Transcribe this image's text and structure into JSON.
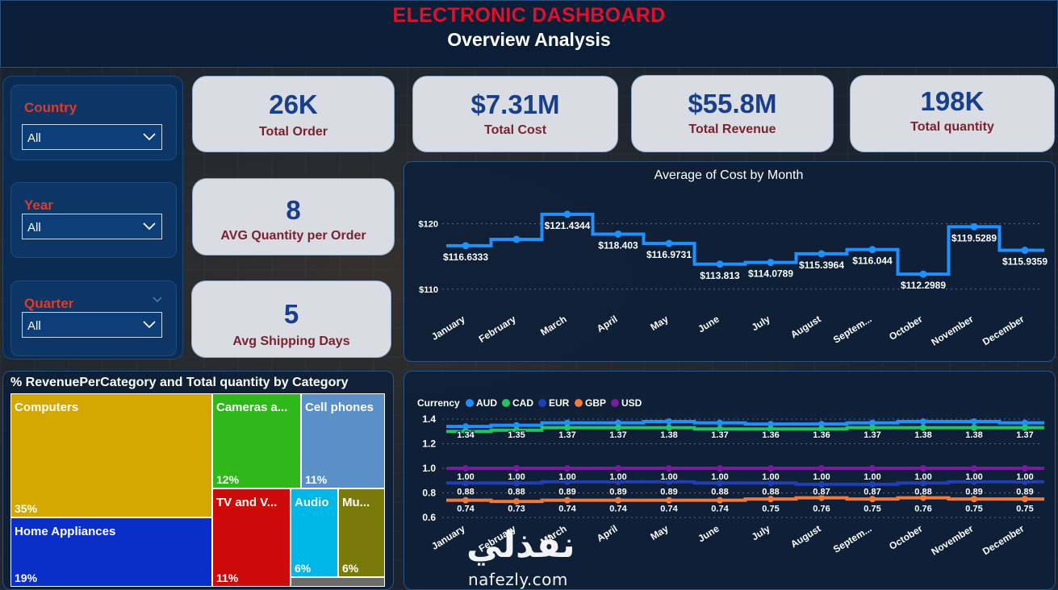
{
  "header": {
    "title": "ELECTRONIC DASHBOARD",
    "subtitle": "Overview Analysis"
  },
  "slicers": [
    {
      "label": "Country",
      "value": "All"
    },
    {
      "label": "Year",
      "value": "All"
    },
    {
      "label": "Quarter",
      "value": "All"
    }
  ],
  "kpis": [
    {
      "value": "26K",
      "label": "Total Order"
    },
    {
      "value": "$7.31M",
      "label": "Total Cost"
    },
    {
      "value": "$55.8M",
      "label": "Total Revenue"
    },
    {
      "value": "198K",
      "label": "Total quantity"
    },
    {
      "value": "8",
      "label": "AVG Quantity per Order"
    },
    {
      "value": "5",
      "label": "Avg Shipping Days"
    }
  ],
  "colors": {
    "AUD": "#1e90ff",
    "CAD": "#22c55e",
    "EUR": "#1f3fb4",
    "GBP": "#f07a3a",
    "USD": "#7a1aa0",
    "cost_line": "#1e90ff",
    "title_red": "#e0102a"
  },
  "chart_data": [
    {
      "type": "line",
      "title": "Average of Cost by Month",
      "categories": [
        "January",
        "February",
        "March",
        "April",
        "May",
        "June",
        "July",
        "August",
        "Septem...",
        "October",
        "November",
        "December"
      ],
      "values": [
        116.6333,
        117.6,
        121.4344,
        118.403,
        116.9731,
        113.813,
        114.0789,
        115.3964,
        116.044,
        112.2989,
        119.5289,
        115.9359
      ],
      "data_labels": [
        "$116.6333",
        "",
        "$121.4344",
        "$118.403",
        "$116.9731",
        "$113.813",
        "$114.0789",
        "$115.3964",
        "$116.044",
        "$112.2989",
        "$119.5289",
        "$115.9359"
      ],
      "yticks": [
        110,
        120
      ],
      "ytick_labels": [
        "$110",
        "$120"
      ],
      "ylim": [
        108,
        124
      ],
      "grid": true
    },
    {
      "type": "line",
      "legend_title": "Currency",
      "legend_position": "top-left",
      "categories": [
        "January",
        "February",
        "March",
        "April",
        "May",
        "June",
        "July",
        "August",
        "Septem...",
        "October",
        "November",
        "December"
      ],
      "series": [
        {
          "name": "AUD",
          "values": [
            1.34,
            1.35,
            1.37,
            1.37,
            1.38,
            1.37,
            1.36,
            1.36,
            1.37,
            1.38,
            1.38,
            1.37
          ]
        },
        {
          "name": "CAD",
          "values": [
            1.3,
            1.31,
            1.33,
            1.33,
            1.33,
            1.32,
            1.32,
            1.32,
            1.33,
            1.33,
            1.33,
            1.33
          ]
        },
        {
          "name": "EUR",
          "values": [
            0.88,
            0.88,
            0.89,
            0.89,
            0.89,
            0.88,
            0.88,
            0.87,
            0.87,
            0.88,
            0.89,
            0.89
          ]
        },
        {
          "name": "GBP",
          "values": [
            0.74,
            0.73,
            0.74,
            0.74,
            0.74,
            0.74,
            0.75,
            0.76,
            0.75,
            0.76,
            0.75,
            0.75
          ]
        },
        {
          "name": "USD",
          "values": [
            1.0,
            1.0,
            1.0,
            1.0,
            1.0,
            1.0,
            1.0,
            1.0,
            1.0,
            1.0,
            1.0,
            1.0
          ]
        }
      ],
      "label_rows": [
        [
          "1.34",
          "1.35",
          "1.37",
          "1.37",
          "1.38",
          "1.37",
          "1.36",
          "1.36",
          "1.37",
          "1.38",
          "1.38",
          "1.37"
        ],
        [
          "1.00",
          "1.00",
          "1.00",
          "1.00",
          "1.00",
          "1.00",
          "1.00",
          "1.00",
          "1.00",
          "1.00",
          "1.00",
          "1.00"
        ],
        [
          "0.88",
          "0.88",
          "0.89",
          "0.89",
          "0.89",
          "0.88",
          "0.88",
          "0.87",
          "0.87",
          "0.88",
          "0.89",
          "0.89"
        ],
        [
          "0.74",
          "0.73",
          "0.74",
          "0.74",
          "0.74",
          "0.74",
          "0.75",
          "0.76",
          "0.75",
          "0.76",
          "0.75",
          "0.75"
        ]
      ],
      "yticks": [
        0.6,
        0.8,
        1.0,
        1.2,
        1.4
      ],
      "ytick_labels": [
        "0.6",
        "0.8",
        "1.0",
        "1.2",
        "1.4"
      ],
      "ylim": [
        0.6,
        1.45
      ],
      "grid": true
    },
    {
      "type": "treemap",
      "title": "% RevenuePerCategory and Total quantity by Category",
      "items": [
        {
          "name": "Computers",
          "percent": "35%",
          "color": "#d4a800"
        },
        {
          "name": "Home Appliances",
          "percent": "19%",
          "color": "#0a2ec8"
        },
        {
          "name": "Cameras a...",
          "percent": "12%",
          "color": "#2fb81a"
        },
        {
          "name": "Cell phones",
          "percent": "11%",
          "color": "#5a8fc8"
        },
        {
          "name": "TV and V...",
          "percent": "11%",
          "color": "#cc0a0a"
        },
        {
          "name": "Audio",
          "percent": "6%",
          "color": "#00b8e8"
        },
        {
          "name": "Mu...",
          "percent": "6%",
          "color": "#7a7a0a"
        }
      ]
    }
  ],
  "watermark": {
    "arabic": "نفذلي",
    "latin": "nafezly.com"
  }
}
